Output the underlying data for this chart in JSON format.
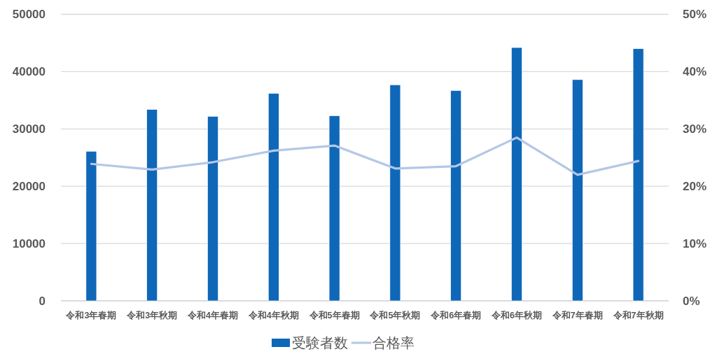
{
  "chart_data": {
    "type": "bar",
    "categories": [
      "令和3年春期",
      "令和3年秋期",
      "令和4年春期",
      "令和4年秋期",
      "令和5年春期",
      "令和5年秋期",
      "令和6年春期",
      "令和6年秋期",
      "令和7年春期",
      "令和7年秋期"
    ],
    "series": [
      {
        "name": "受験者数",
        "color": "#0f67b8",
        "values": [
          26100,
          33400,
          32200,
          36200,
          32300,
          37700,
          36700,
          44200,
          38600,
          44000
        ]
      },
      {
        "name": "合格率",
        "type": "line",
        "axis": "y2",
        "color": "#b4c7e7",
        "values": [
          23.9,
          22.9,
          24.2,
          26.2,
          27.1,
          23.1,
          23.5,
          28.5,
          22.0,
          24.4
        ]
      }
    ],
    "ylim": [
      0,
      50000
    ],
    "yticks": [
      0,
      10000,
      20000,
      30000,
      40000,
      50000
    ],
    "y2lim": [
      0,
      50
    ],
    "y2ticks": [
      {
        "value": 0,
        "label": "0%"
      },
      {
        "value": 10,
        "label": "10%"
      },
      {
        "value": 20,
        "label": "20%"
      },
      {
        "value": 30,
        "label": "30%"
      },
      {
        "value": 40,
        "label": "40%"
      },
      {
        "value": 50,
        "label": "50%"
      }
    ],
    "grid": "y",
    "legend": "bottom"
  }
}
